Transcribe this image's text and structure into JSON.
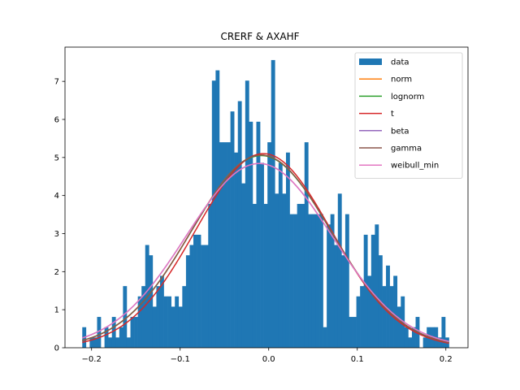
{
  "chart_data": {
    "type": "histogram",
    "title": "CRERF & AXAHF",
    "xlabel": "",
    "ylabel": "",
    "xlim": [
      -0.23,
      0.225
    ],
    "ylim": [
      0,
      7.9
    ],
    "grid": false,
    "legend_position": "top-right",
    "x_ticks": [
      -0.2,
      -0.1,
      0.0,
      0.1,
      0.2
    ],
    "x_tick_labels": [
      "−0.2",
      "−0.1",
      "0.0",
      "0.1",
      "0.2"
    ],
    "y_ticks": [
      0,
      1,
      2,
      3,
      4,
      5,
      6,
      7
    ],
    "y_tick_labels": [
      "0",
      "1",
      "2",
      "3",
      "4",
      "5",
      "6",
      "7"
    ],
    "histogram": {
      "name": "data",
      "color": "#1f77b4",
      "bin_start": -0.2105,
      "bin_end": 0.2035,
      "density": [
        0.54,
        0.0,
        0.27,
        0.27,
        0.81,
        0.0,
        0.54,
        0.27,
        0.81,
        0.27,
        0.54,
        1.62,
        0.27,
        0.81,
        0.81,
        1.35,
        1.62,
        2.7,
        2.43,
        1.08,
        1.62,
        1.89,
        1.35,
        1.35,
        1.08,
        1.35,
        1.08,
        1.62,
        2.43,
        2.7,
        2.97,
        2.97,
        2.7,
        2.7,
        3.78,
        7.02,
        7.29,
        5.4,
        5.4,
        5.4,
        6.21,
        5.13,
        6.48,
        4.32,
        7.02,
        5.94,
        3.78,
        5.94,
        4.86,
        3.78,
        5.4,
        7.56,
        4.05,
        4.86,
        4.05,
        5.13,
        3.51,
        3.51,
        3.78,
        3.78,
        5.4,
        3.51,
        3.51,
        3.51,
        3.51,
        0.54,
        3.24,
        3.51,
        2.7,
        4.05,
        2.43,
        3.51,
        0.81,
        0.81,
        1.35,
        1.62,
        2.97,
        1.89,
        2.97,
        3.24,
        2.43,
        1.62,
        2.16,
        1.62,
        1.89,
        1.08,
        1.35,
        0.54,
        0.27,
        0.54,
        0.81,
        0.0,
        0.27,
        0.54,
        0.54,
        0.54,
        0.27,
        0.81,
        0.27
      ]
    },
    "series": [
      {
        "name": "norm",
        "color": "#ff7f0e",
        "mu": -0.0085,
        "sigma": 0.0788,
        "scale": 1.0
      },
      {
        "name": "lognorm",
        "color": "#2ca02c",
        "mu": -0.0085,
        "sigma": 0.0789,
        "scale": 0.999
      },
      {
        "name": "t",
        "color": "#d62728",
        "mu": -0.006,
        "sigma": 0.0764,
        "scale": 0.977
      },
      {
        "name": "beta",
        "color": "#9467bd",
        "mu": -0.0108,
        "sigma": 0.0824,
        "scale": 1.0
      },
      {
        "name": "gamma",
        "color": "#8c564b",
        "mu": -0.0085,
        "sigma": 0.0788,
        "scale": 1.0
      },
      {
        "name": "weibull_min",
        "color": "#e377c2",
        "mu": -0.0108,
        "sigma": 0.0824,
        "scale": 1.0
      }
    ]
  }
}
